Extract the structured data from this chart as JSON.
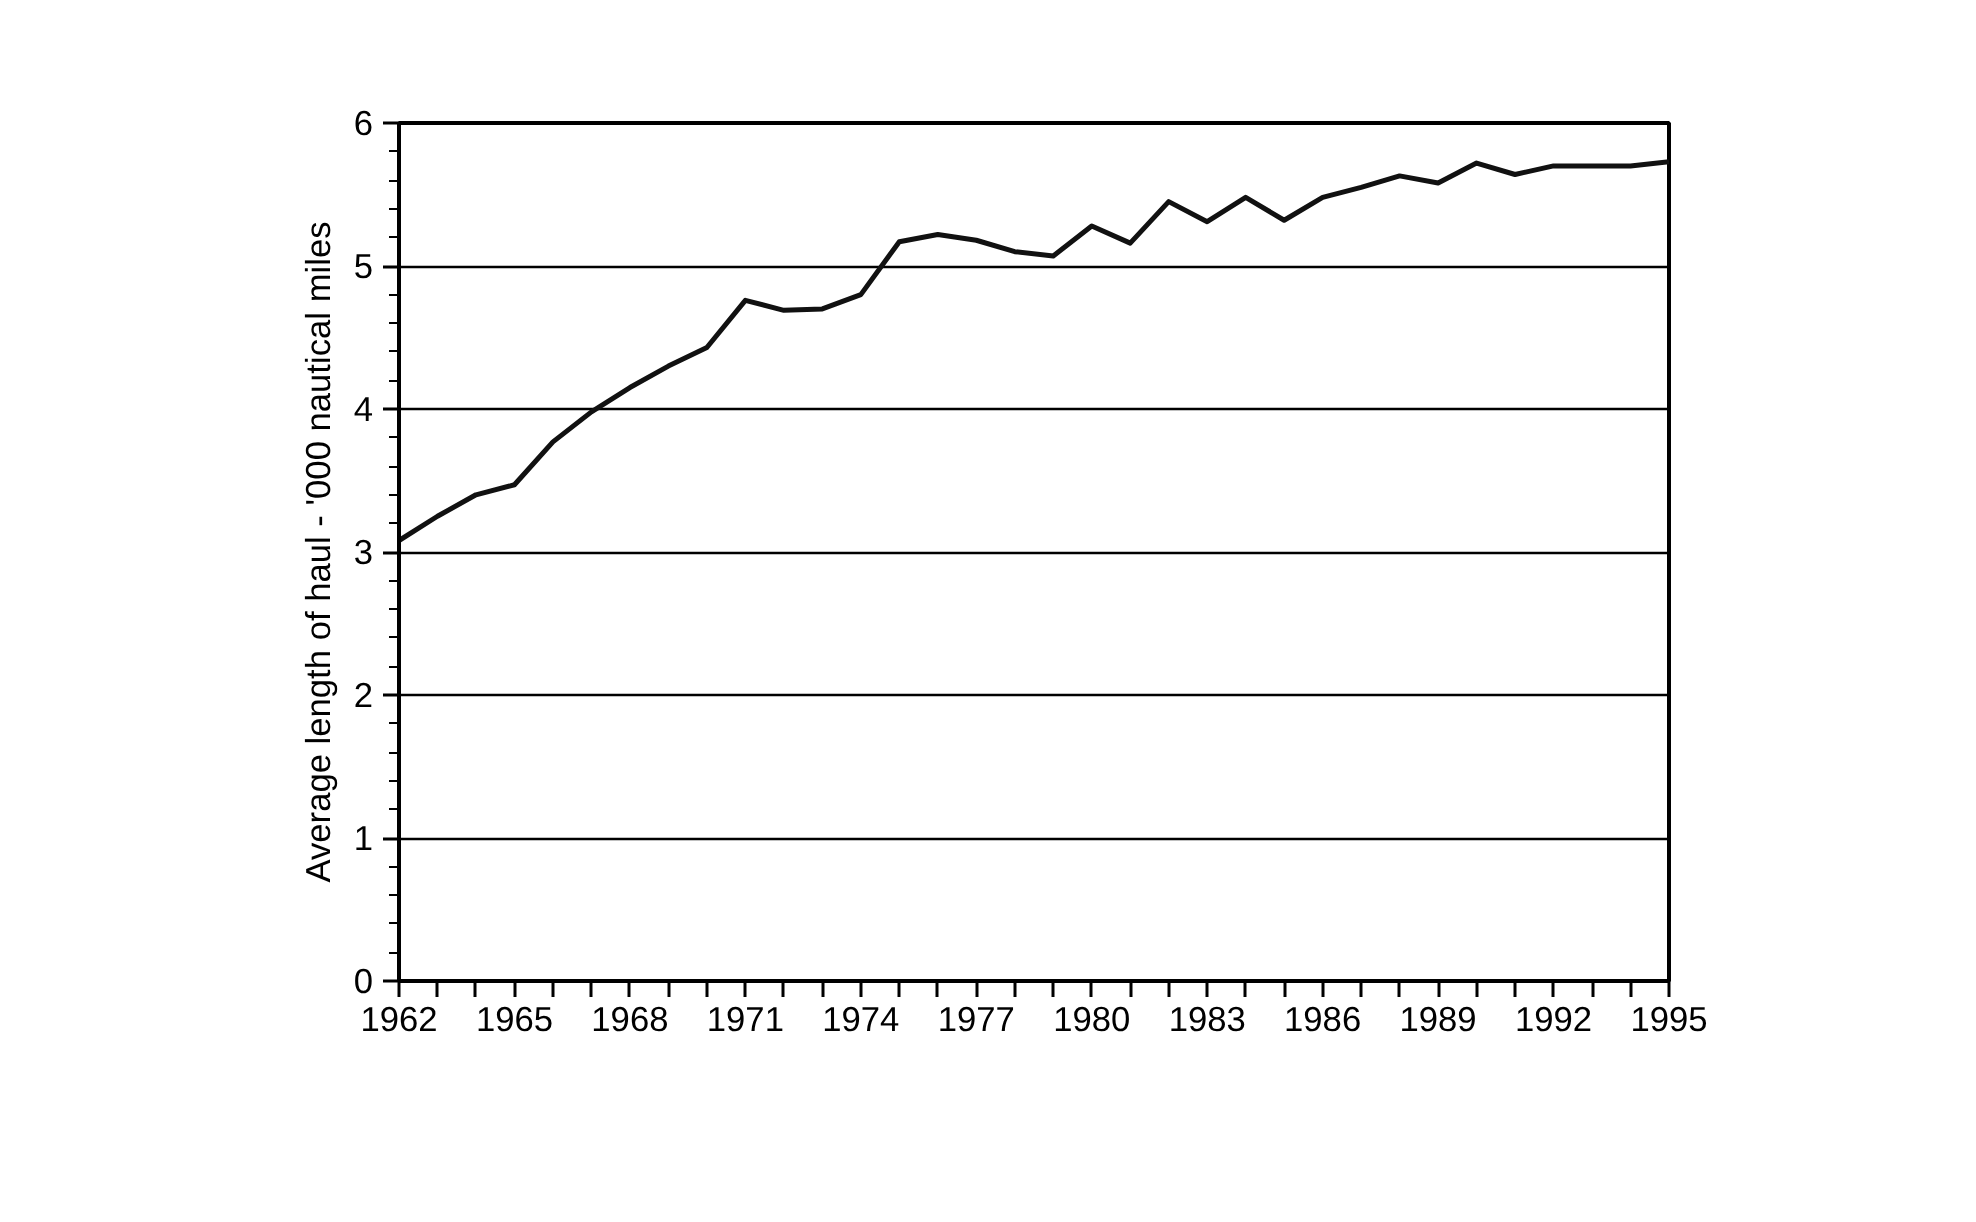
{
  "chart_data": {
    "type": "line",
    "ylabel": "Average length of haul - '000 nautical miles",
    "x": [
      1962,
      1963,
      1964,
      1965,
      1966,
      1967,
      1968,
      1969,
      1970,
      1971,
      1972,
      1973,
      1974,
      1975,
      1976,
      1977,
      1978,
      1979,
      1980,
      1981,
      1982,
      1983,
      1984,
      1985,
      1986,
      1987,
      1988,
      1989,
      1990,
      1991,
      1992,
      1993,
      1994,
      1995
    ],
    "series": [
      {
        "color": "#111111",
        "values": [
          3.08,
          3.25,
          3.4,
          3.47,
          3.77,
          3.98,
          4.15,
          4.3,
          4.43,
          4.76,
          4.69,
          4.7,
          4.8,
          5.17,
          5.22,
          5.18,
          5.1,
          5.07,
          5.28,
          5.16,
          5.45,
          5.31,
          5.48,
          5.32,
          5.48,
          5.55,
          5.63,
          5.58,
          5.72,
          5.64,
          5.7,
          5.7,
          5.7,
          5.73
        ]
      }
    ],
    "xlim": [
      1962,
      1995
    ],
    "ylim": [
      0,
      6
    ],
    "yticks": [
      0,
      1,
      2,
      3,
      4,
      5,
      6
    ],
    "xticks": [
      1962,
      {
        "value": 1963,
        "label": null
      },
      {
        "value": 1964,
        "label": null
      },
      1965,
      {
        "value": 1966,
        "label": null
      },
      {
        "value": 1967,
        "label": null
      },
      1968,
      {
        "value": 1969,
        "label": null
      },
      {
        "value": 1970,
        "label": null
      },
      1971,
      {
        "value": 1972,
        "label": null
      },
      {
        "value": 1973,
        "label": null
      },
      1974,
      {
        "value": 1975,
        "label": null
      },
      {
        "value": 1976,
        "label": null
      },
      1977,
      {
        "value": 1978,
        "label": null
      },
      {
        "value": 1979,
        "label": null
      },
      1980,
      {
        "value": 1981,
        "label": null
      },
      {
        "value": 1982,
        "label": null
      },
      1983,
      {
        "value": 1984,
        "label": null
      },
      {
        "value": 1985,
        "label": null
      },
      1986,
      {
        "value": 1987,
        "label": null
      },
      {
        "value": 1988,
        "label": null
      },
      1989,
      {
        "value": 1990,
        "label": null
      },
      {
        "value": 1991,
        "label": null
      },
      1992,
      {
        "value": 1993,
        "label": null
      },
      {
        "value": 1994,
        "label": null
      },
      1995
    ],
    "grid": "y",
    "marker": "none",
    "line_style": "solid"
  }
}
